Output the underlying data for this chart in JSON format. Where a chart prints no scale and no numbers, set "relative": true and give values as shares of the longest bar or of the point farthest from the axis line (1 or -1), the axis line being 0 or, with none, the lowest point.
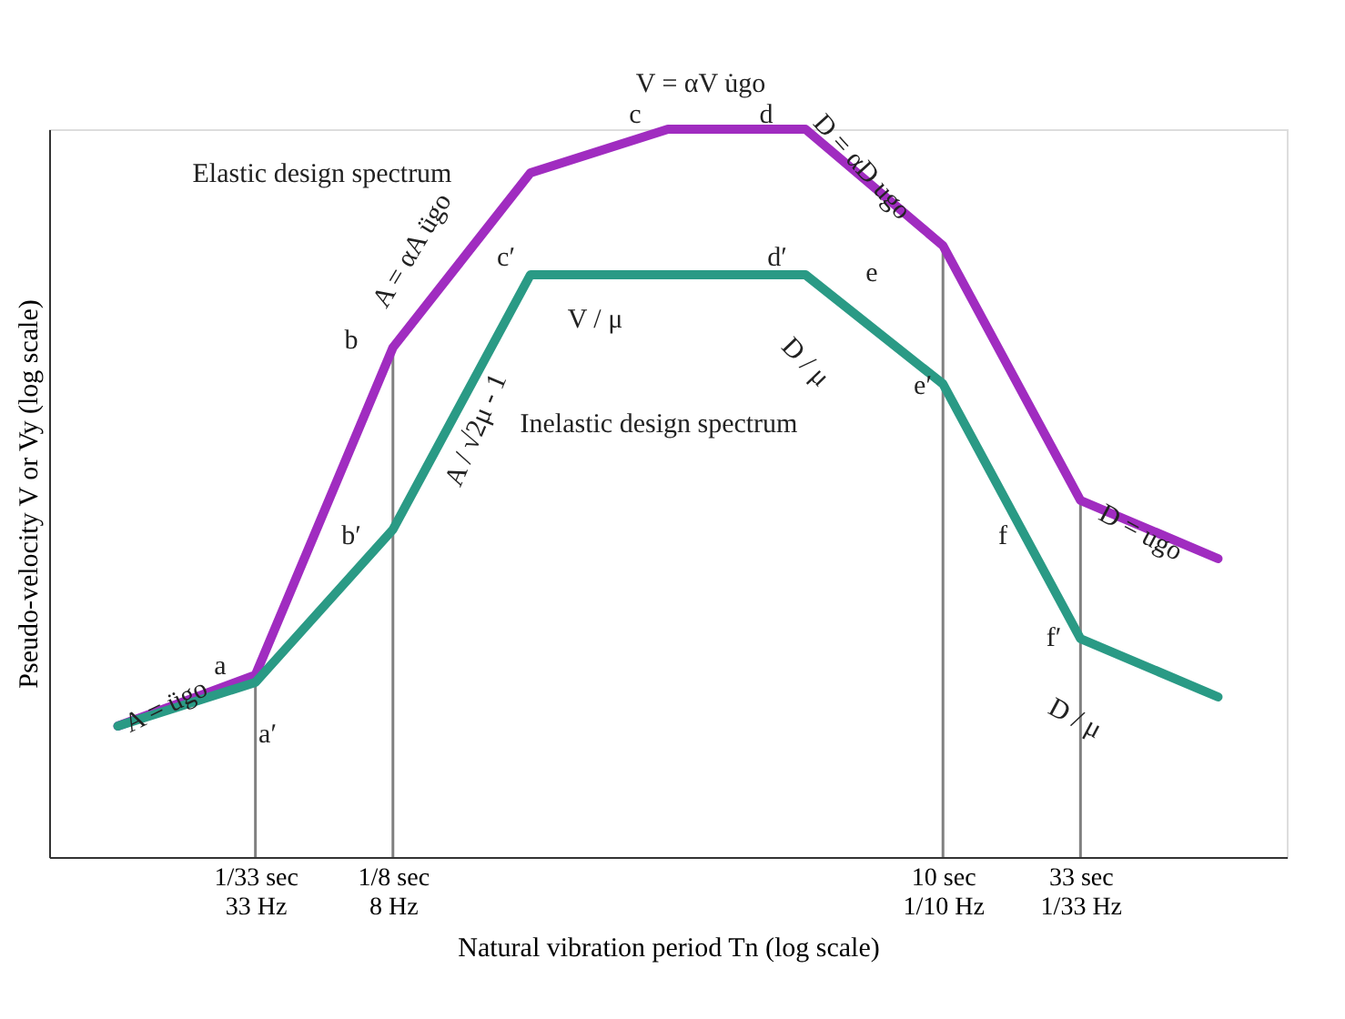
{
  "chart_data": {
    "type": "line",
    "relative": true,
    "grid": false,
    "marker": "none",
    "line_style": "solid",
    "xlabel": "Natural vibration period Tn  (log scale)",
    "ylabel": "Pseudo-velocity V or Vy (log scale)",
    "categories": [
      null,
      "1/33 sec\n33 Hz",
      "1/8 sec\n8 Hz",
      null,
      null,
      null,
      "10 sec\n1/10 Hz",
      "33 sec\n1/33 Hz",
      null
    ],
    "series": [
      {
        "color": "#a02cc0",
        "values": [
          0.18,
          0.25,
          0.7,
          0.94,
          1,
          1,
          0.84,
          0.49,
          0.41
        ]
      },
      {
        "color": "#2a9a85",
        "values": [
          0.18,
          0.24,
          0.45,
          0.8,
          0.8,
          0.8,
          0.65,
          0.3,
          0.22
        ]
      }
    ],
    "ref_lines": [
      {
        "axis": "x",
        "value": "1/33 sec\n33 Hz",
        "color": "#808080"
      },
      {
        "axis": "x",
        "value": "1/8 sec\n8 Hz",
        "color": "#808080"
      },
      {
        "axis": "x",
        "value": "10 sec\n1/10 Hz",
        "color": "#808080"
      },
      {
        "axis": "x",
        "value": "33 sec\n1/33 Hz",
        "color": "#808080"
      }
    ],
    "annotations": [
      "Elastic design spectrum",
      "c",
      "d",
      "V = αV u̇go",
      "D = αD ugo",
      "A = αA ügo",
      "b",
      "e",
      "f",
      "D = ugo",
      "c′",
      "d′",
      "V / μ",
      "b′",
      "A / √2μ - 1",
      "Inelastic design spectrum",
      "D / μ",
      "e′",
      "f′",
      "D / μ",
      "a",
      "a′",
      "A = ügo"
    ]
  }
}
